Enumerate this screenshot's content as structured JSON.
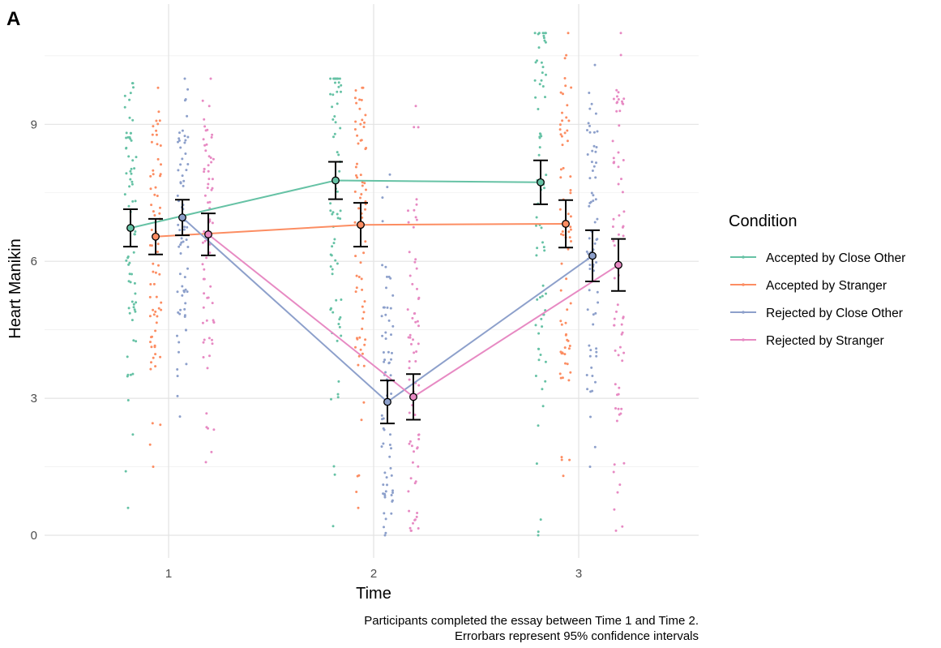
{
  "chart_data": {
    "type": "scatter",
    "panel_tag": "A",
    "xlabel": "Time",
    "ylabel": "Heart Manikin",
    "x_categories": [
      "1",
      "2",
      "3"
    ],
    "y_ticks": [
      "0",
      "3",
      "6",
      "9"
    ],
    "ylim": [
      -0.4,
      11.0
    ],
    "grid": true,
    "legend": {
      "title": "Condition",
      "position": "right"
    },
    "caption": [
      "Participants completed the essay between Time 1 and Time 2.",
      "Errorbars represent 95% confidence intervals"
    ],
    "error_bars": "95% confidence intervals",
    "series": [
      {
        "name": "Accepted by Close Other",
        "color": "#66c2a5",
        "means": [
          6.73,
          7.77,
          7.73
        ],
        "ci_low": [
          6.32,
          7.36,
          7.25
        ],
        "ci_high": [
          7.14,
          8.18,
          8.21
        ],
        "points_range": [
          [
            0.6,
            9.9
          ],
          [
            0.2,
            10.0
          ],
          [
            0.0,
            11.0
          ]
        ],
        "points_min": [
          0.6,
          0.2,
          0.0
        ],
        "points_max": [
          9.9,
          10.0,
          11.0
        ]
      },
      {
        "name": "Accepted by Stranger",
        "color": "#fc8d62",
        "means": [
          6.54,
          6.8,
          6.82
        ],
        "ci_low": [
          6.15,
          6.32,
          6.3
        ],
        "ci_high": [
          6.93,
          7.28,
          7.34
        ],
        "points_min": [
          1.5,
          0.6,
          1.3
        ],
        "points_max": [
          9.8,
          9.8,
          11.0
        ]
      },
      {
        "name": "Rejected by Close Other",
        "color": "#8da0cb",
        "means": [
          6.96,
          2.92,
          6.12
        ],
        "ci_low": [
          6.57,
          2.45,
          5.56
        ],
        "ci_high": [
          7.35,
          3.39,
          6.68
        ],
        "points_min": [
          2.6,
          0.0,
          1.5
        ],
        "points_max": [
          10.0,
          7.9,
          10.3
        ]
      },
      {
        "name": "Rejected by Stranger",
        "color": "#e78ac3",
        "means": [
          6.59,
          3.03,
          5.92
        ],
        "ci_low": [
          6.13,
          2.53,
          5.35
        ],
        "ci_high": [
          7.05,
          3.53,
          6.49
        ],
        "points_min": [
          1.6,
          0.1,
          0.1
        ],
        "points_max": [
          10.0,
          9.4,
          11.0
        ]
      }
    ]
  }
}
